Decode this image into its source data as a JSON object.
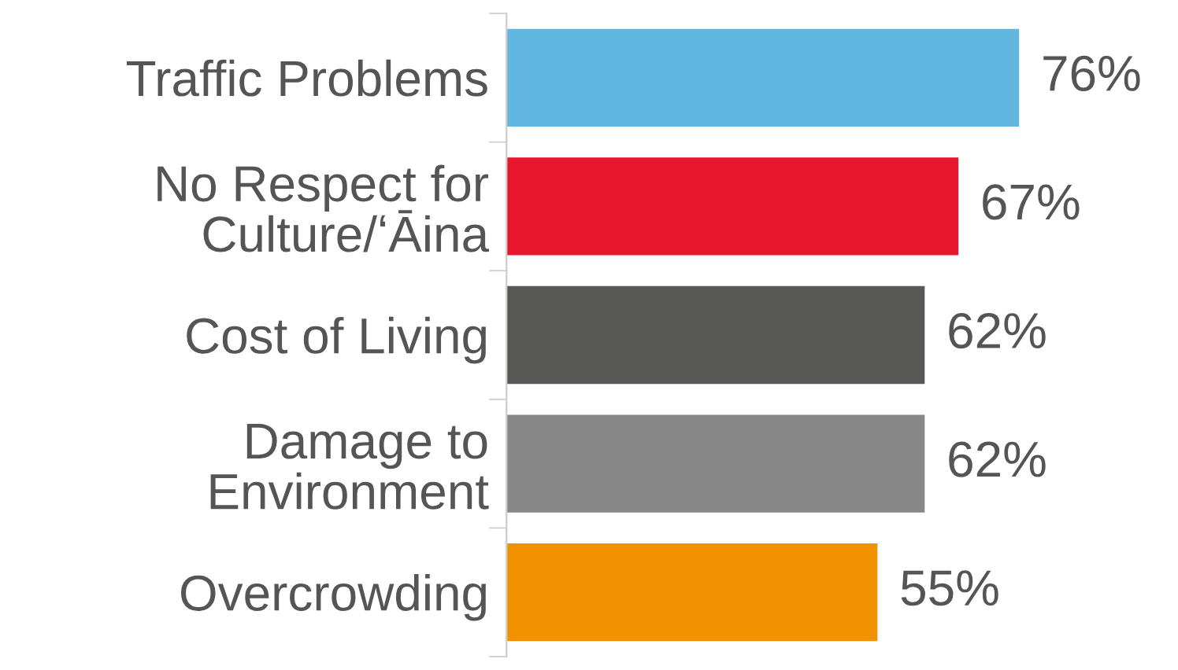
{
  "chart_data": {
    "type": "bar",
    "orientation": "horizontal",
    "categories": [
      "Traffic Problems",
      "No Respect for\nCulture/ʻĀina",
      "Cost of Living",
      "Damage to\nEnvironment",
      "Overcrowding"
    ],
    "values": [
      76,
      67,
      62,
      62,
      55
    ],
    "value_labels": [
      "76%",
      "67%",
      "62%",
      "62%",
      "55%"
    ],
    "colors": [
      "#62b7e0",
      "#e8172d",
      "#575756",
      "#878787",
      "#f39200"
    ],
    "grid": false,
    "legend": false
  }
}
